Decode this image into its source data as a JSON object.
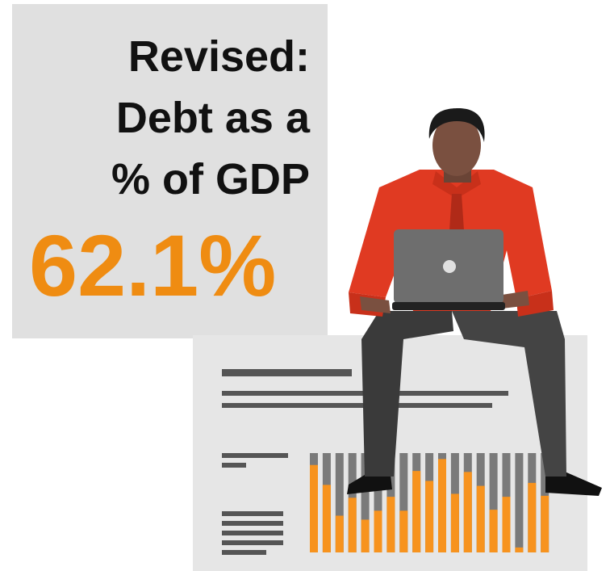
{
  "headline": {
    "line1": "Revised:",
    "line2": "Debt as a",
    "line3": "% of GDP"
  },
  "value": {
    "text": "62.1%",
    "color": "#ef8c12"
  },
  "colors": {
    "panel": "#e0e0e0",
    "shirt": "#e03a22",
    "skin": "#7a5040",
    "trousers": "#3e3e3e",
    "laptop": "#6e6e6e",
    "document": "#e6e6e6",
    "bar_orange": "#f7931e",
    "bar_gray": "#7a7a7a"
  },
  "icons": [
    "person-with-laptop-illustration",
    "laptop-icon",
    "document-report-illustration"
  ]
}
